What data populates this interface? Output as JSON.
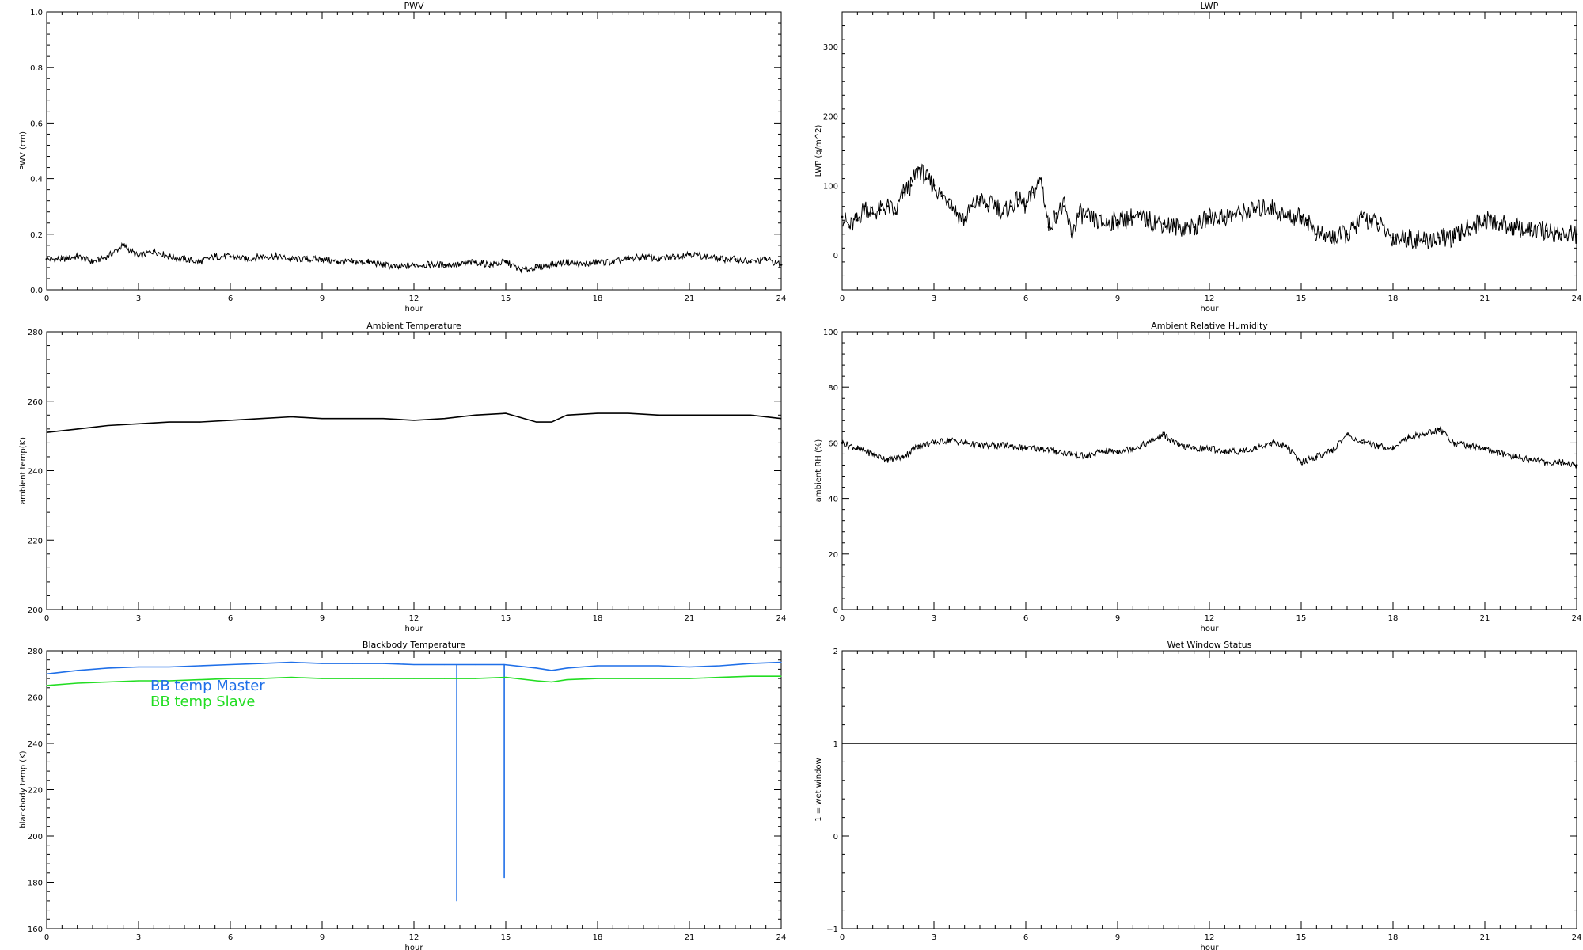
{
  "chart_data": [
    {
      "type": "scatter",
      "title": "PWV",
      "xlabel": "hour",
      "ylabel": "PWV (cm)",
      "xlim": [
        0,
        24
      ],
      "ylim": [
        0,
        1.0
      ],
      "x_ticks": [
        "0",
        "3",
        "6",
        "9",
        "12",
        "15",
        "18",
        "21",
        "24"
      ],
      "y_ticks": [
        "0.0",
        "0.2",
        "0.4",
        "0.6",
        "0.8",
        "1.0"
      ],
      "y_tick_values": [
        0,
        0.2,
        0.4,
        0.6,
        0.8,
        1.0
      ],
      "series": [
        {
          "color": "#000000",
          "marker": "dots",
          "x": [
            0,
            0.5,
            1,
            1.5,
            2,
            2.5,
            3,
            3.5,
            4,
            4.5,
            5,
            5.5,
            6,
            6.5,
            7,
            7.5,
            8,
            8.5,
            9,
            9.5,
            10,
            10.5,
            11,
            11.5,
            12,
            12.5,
            13,
            13.5,
            14,
            14.5,
            15,
            15.5,
            16,
            16.5,
            17,
            17.5,
            18,
            18.5,
            19,
            19.5,
            20,
            20.5,
            21,
            21.5,
            22,
            22.5,
            23,
            23.5,
            24
          ],
          "y": [
            0.11,
            0.11,
            0.12,
            0.1,
            0.12,
            0.16,
            0.12,
            0.14,
            0.12,
            0.11,
            0.1,
            0.12,
            0.12,
            0.11,
            0.12,
            0.12,
            0.11,
            0.11,
            0.11,
            0.1,
            0.1,
            0.1,
            0.09,
            0.08,
            0.09,
            0.09,
            0.09,
            0.09,
            0.1,
            0.09,
            0.1,
            0.07,
            0.08,
            0.09,
            0.1,
            0.09,
            0.1,
            0.1,
            0.11,
            0.12,
            0.11,
            0.12,
            0.13,
            0.12,
            0.11,
            0.11,
            0.1,
            0.11,
            0.09
          ]
        }
      ]
    },
    {
      "type": "scatter",
      "title": "LWP",
      "xlabel": "hour",
      "ylabel": "LWP (g/m^2)",
      "xlim": [
        0,
        24
      ],
      "ylim": [
        -50,
        350
      ],
      "x_ticks": [
        "0",
        "3",
        "6",
        "9",
        "12",
        "15",
        "18",
        "21",
        "24"
      ],
      "y_ticks": [
        "0",
        "100",
        "200",
        "300"
      ],
      "y_tick_values": [
        0,
        100,
        200,
        300
      ],
      "series": [
        {
          "color": "#000000",
          "marker": "dots",
          "x": [
            0,
            0.25,
            0.5,
            0.75,
            1,
            1.25,
            1.5,
            1.75,
            2,
            2.25,
            2.5,
            2.75,
            3,
            3.25,
            3.5,
            3.75,
            4,
            4.25,
            4.5,
            4.75,
            5,
            5.25,
            5.5,
            5.75,
            6,
            6.25,
            6.5,
            6.75,
            7,
            7.25,
            7.5,
            7.75,
            8,
            8.5,
            9,
            9.5,
            10,
            10.5,
            11,
            11.5,
            12,
            12.5,
            13,
            13.5,
            14,
            14.5,
            15,
            15.2,
            15.5,
            16,
            16.5,
            16.75,
            17,
            17.5,
            18,
            18.5,
            19,
            19.5,
            20,
            20.5,
            21,
            21.5,
            22,
            22.5,
            23,
            23.5,
            24
          ],
          "y": [
            55,
            40,
            50,
            70,
            60,
            65,
            70,
            60,
            90,
            100,
            125,
            110,
            100,
            85,
            80,
            60,
            50,
            70,
            80,
            70,
            75,
            60,
            70,
            80,
            70,
            90,
            110,
            40,
            60,
            70,
            30,
            60,
            55,
            45,
            50,
            55,
            50,
            45,
            40,
            40,
            55,
            55,
            60,
            65,
            70,
            55,
            55,
            50,
            30,
            25,
            30,
            40,
            55,
            45,
            25,
            25,
            20,
            25,
            25,
            40,
            50,
            45,
            40,
            35,
            35,
            30,
            30
          ]
        }
      ]
    },
    {
      "type": "line",
      "title": "Ambient Temperature",
      "xlabel": "hour",
      "ylabel": "ambient temp(K)",
      "xlim": [
        0,
        24
      ],
      "ylim": [
        200,
        280
      ],
      "x_ticks": [
        "0",
        "3",
        "6",
        "9",
        "12",
        "15",
        "18",
        "21",
        "24"
      ],
      "y_ticks": [
        "200",
        "220",
        "240",
        "260",
        "280"
      ],
      "y_tick_values": [
        200,
        220,
        240,
        260,
        280
      ],
      "series": [
        {
          "color": "#000000",
          "x": [
            0,
            1,
            2,
            3,
            4,
            5,
            6,
            7,
            8,
            9,
            10,
            11,
            12,
            13,
            14,
            15,
            16,
            16.5,
            17,
            18,
            19,
            20,
            21,
            22,
            23,
            24
          ],
          "y": [
            251,
            252,
            253,
            253.5,
            254,
            254,
            254.5,
            255,
            255.5,
            255,
            255,
            255,
            254.5,
            255,
            256,
            256.5,
            254,
            254,
            256,
            256.5,
            256.5,
            256,
            256,
            256,
            256,
            255
          ]
        }
      ]
    },
    {
      "type": "scatter",
      "title": "Ambient Relative Humidity",
      "xlabel": "hour",
      "ylabel": "ambient RH (%)",
      "xlim": [
        0,
        24
      ],
      "ylim": [
        0,
        100
      ],
      "x_ticks": [
        "0",
        "3",
        "6",
        "9",
        "12",
        "15",
        "18",
        "21",
        "24"
      ],
      "y_ticks": [
        "0",
        "20",
        "40",
        "60",
        "80",
        "100"
      ],
      "y_tick_values": [
        0,
        20,
        40,
        60,
        80,
        100
      ],
      "series": [
        {
          "color": "#000000",
          "marker": "dots",
          "x": [
            0,
            0.5,
            1,
            1.5,
            2,
            2.5,
            3,
            3.5,
            4,
            4.5,
            5,
            5.5,
            6,
            6.5,
            7,
            7.5,
            8,
            8.5,
            9,
            9.5,
            10,
            10.5,
            11,
            11.5,
            12,
            12.5,
            13,
            13.5,
            14,
            14.5,
            15,
            15.5,
            16,
            16.5,
            17,
            17.5,
            18,
            18.5,
            19,
            19.5,
            20,
            20.5,
            21,
            21.5,
            22,
            22.5,
            23,
            23.5,
            24
          ],
          "y": [
            60,
            58,
            56,
            54,
            55,
            59,
            60,
            61,
            60,
            59,
            59,
            59,
            58,
            58,
            57,
            56,
            55,
            57,
            57,
            58,
            60,
            63,
            59,
            58,
            58,
            57,
            57,
            58,
            60,
            59,
            53,
            55,
            57,
            63,
            60,
            59,
            58,
            62,
            63,
            65,
            60,
            59,
            58,
            56,
            55,
            54,
            53,
            53,
            52
          ]
        }
      ]
    },
    {
      "type": "line",
      "title": "Blackbody Temperature",
      "xlabel": "hour",
      "ylabel": "blackbody temp (K)",
      "xlim": [
        0,
        24
      ],
      "ylim": [
        160,
        280
      ],
      "x_ticks": [
        "0",
        "3",
        "6",
        "9",
        "12",
        "15",
        "18",
        "21",
        "24"
      ],
      "y_ticks": [
        "160",
        "180",
        "200",
        "220",
        "240",
        "260",
        "280"
      ],
      "y_tick_values": [
        160,
        180,
        200,
        220,
        240,
        260,
        280
      ],
      "legend": [
        "BB temp Master",
        "BB temp Slave"
      ],
      "legend_position": "top-left",
      "series": [
        {
          "name": "BB temp Master",
          "color": "#1f6fe8",
          "x": [
            0,
            1,
            2,
            3,
            4,
            5,
            6,
            7,
            8,
            9,
            10,
            11,
            12,
            13,
            13.4,
            13.4,
            13.4,
            14,
            14.95,
            14.95,
            14.95,
            16,
            16.5,
            17,
            18,
            19,
            20,
            21,
            22,
            23,
            24
          ],
          "y": [
            270,
            271.5,
            272.5,
            273,
            273,
            273.5,
            274,
            274.5,
            275,
            274.5,
            274.5,
            274.5,
            274,
            274,
            274,
            172,
            274,
            274,
            274,
            182,
            274,
            272.5,
            271.5,
            272.5,
            273.5,
            273.5,
            273.5,
            273,
            273.5,
            274.5,
            275
          ]
        },
        {
          "name": "BB temp Slave",
          "color": "#22dd22",
          "x": [
            0,
            1,
            2,
            3,
            4,
            5,
            6,
            7,
            8,
            9,
            10,
            11,
            12,
            13,
            14,
            15,
            16,
            16.5,
            17,
            18,
            19,
            20,
            21,
            22,
            23,
            24
          ],
          "y": [
            265,
            266,
            266.5,
            267,
            267,
            267.5,
            268,
            268,
            268.5,
            268,
            268,
            268,
            268,
            268,
            268,
            268.5,
            267,
            266.5,
            267.5,
            268,
            268,
            268,
            268,
            268.5,
            269,
            269
          ]
        }
      ]
    },
    {
      "type": "line",
      "title": "Wet Window Status",
      "xlabel": "hour",
      "ylabel": "1 = wet window",
      "xlim": [
        0,
        24
      ],
      "ylim": [
        -1,
        2
      ],
      "x_ticks": [
        "0",
        "3",
        "6",
        "9",
        "12",
        "15",
        "18",
        "21",
        "24"
      ],
      "y_ticks": [
        "−1",
        "0",
        "1",
        "2"
      ],
      "y_tick_values": [
        -1,
        0,
        1,
        2
      ],
      "series": [
        {
          "color": "#000000",
          "x": [
            0,
            24
          ],
          "y": [
            1,
            1
          ]
        }
      ]
    }
  ]
}
